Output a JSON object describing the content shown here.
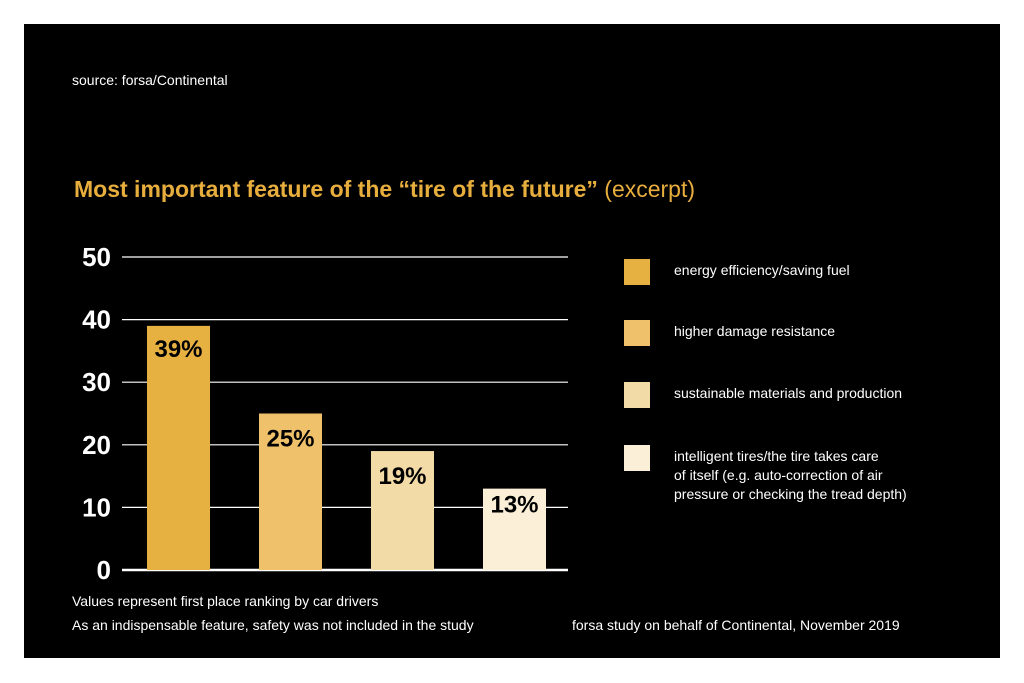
{
  "source": "source: forsa/Continental",
  "title": {
    "main": "Most important feature of the “tire of the future”",
    "sub": " (excerpt)"
  },
  "notes": {
    "line1": "Values represent first place ranking by car drivers",
    "line2": "As an indispensable feature, safety was not included in the study"
  },
  "credit": "forsa study on behalf of Continental, November 2019",
  "colors": {
    "background": "#000000",
    "title": "#e8ae3d",
    "grid": "#ffffff",
    "text": "#ffffff"
  },
  "chart_data": {
    "type": "bar",
    "title": "Most important feature of the “tire of the future” (excerpt)",
    "categories": [
      "energy efficiency/saving fuel",
      "higher damage resistance",
      "sustainable materials and production",
      "intelligent tires/the tire takes care of itself (e.g. auto-correction of air pressure or checking the tread depth)"
    ],
    "values": [
      39,
      25,
      19,
      13
    ],
    "value_labels": [
      "39%",
      "25%",
      "19%",
      "13%"
    ],
    "colors": [
      "#e7b142",
      "#eec16a",
      "#f3dba7",
      "#fbefd8"
    ],
    "ylim": [
      0,
      50
    ],
    "yticks": [
      0,
      10,
      20,
      30,
      40,
      50
    ],
    "grid": true,
    "legend": {
      "position": "right",
      "items": [
        "energy efficiency/saving fuel",
        "higher damage resistance",
        "sustainable materials and production",
        "intelligent tires/the tire takes care\nof itself (e.g. auto-correction of air\npressure or checking the tread depth)"
      ]
    }
  }
}
